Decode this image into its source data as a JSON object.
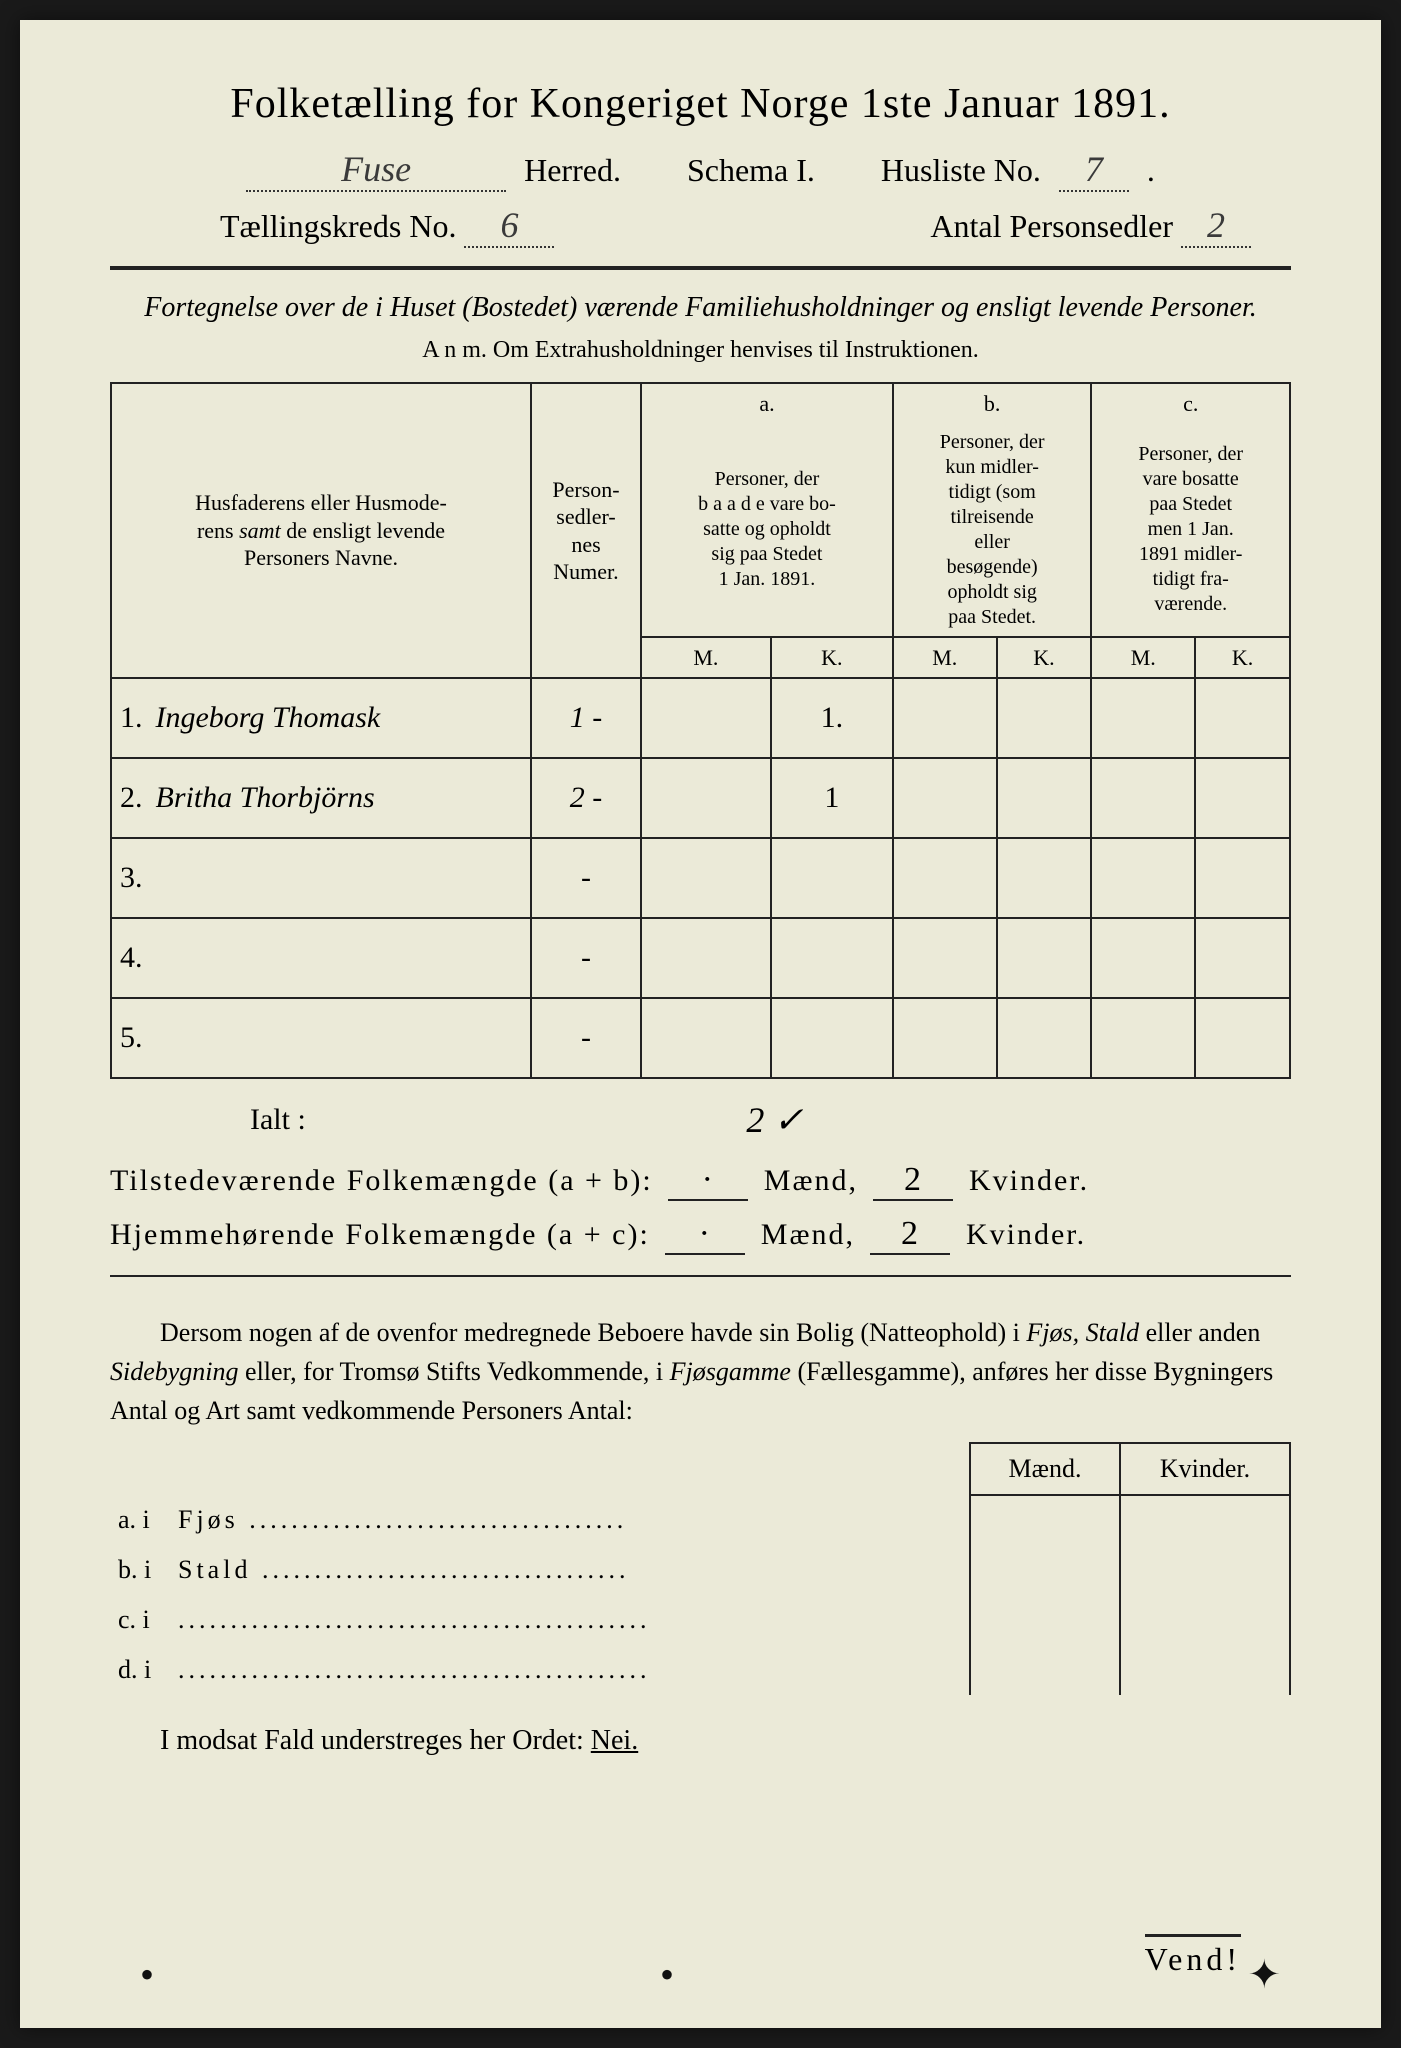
{
  "title": "Folketælling for Kongeriget Norge 1ste Januar 1891.",
  "header": {
    "herred_value": "Fuse",
    "herred_label": "Herred.",
    "schema_label": "Schema I.",
    "husliste_label": "Husliste No.",
    "husliste_value": "7",
    "kreds_label": "Tællingskreds No.",
    "kreds_value": "6",
    "antal_label": "Antal Personsedler",
    "antal_value": "2"
  },
  "subdesc": "Fortegnelse over de i Huset (Bostedet) værende Familiehusholdninger og ensligt levende Personer.",
  "anm": "A n m.  Om Extrahusholdninger henvises til Instruktionen.",
  "table_headers": {
    "name": "Husfaderens eller Husmoderens samt de ensligt levende Personers Navne.",
    "ps": "Person-sedler-nes Numer.",
    "a_top": "a.",
    "a": "Personer, der baade vare bosatte og opholdt sig paa Stedet 1 Jan. 1891.",
    "b_top": "b.",
    "b": "Personer, der kun midlertidigt (som tilreisende eller besøgende) opholdt sig paa Stedet.",
    "c_top": "c.",
    "c": "Personer, der vare bosatte paa Stedet men 1 Jan. 1891 midlertidigt fraværende.",
    "M": "M.",
    "K": "K."
  },
  "rows": [
    {
      "n": "1.",
      "name": "Ingeborg Thomask",
      "ps": "1 -",
      "aM": "",
      "aK": "1.",
      "bM": "",
      "bK": "",
      "cM": "",
      "cK": ""
    },
    {
      "n": "2.",
      "name": "Britha Thorbjörns",
      "ps": "2 -",
      "aM": "",
      "aK": "1",
      "bM": "",
      "bK": "",
      "cM": "",
      "cK": ""
    },
    {
      "n": "3.",
      "name": "",
      "ps": "-",
      "aM": "",
      "aK": "",
      "bM": "",
      "bK": "",
      "cM": "",
      "cK": ""
    },
    {
      "n": "4.",
      "name": "",
      "ps": "-",
      "aM": "",
      "aK": "",
      "bM": "",
      "bK": "",
      "cM": "",
      "cK": ""
    },
    {
      "n": "5.",
      "name": "",
      "ps": "-",
      "aM": "",
      "aK": "",
      "bM": "",
      "bK": "",
      "cM": "",
      "cK": ""
    }
  ],
  "ialt": {
    "label": "Ialt :",
    "aK": "2 ✓"
  },
  "totals": {
    "line1_label": "Tilstedeværende Folkemængde (a + b):",
    "line1_m_label": "Mænd,",
    "line1_k_label": "Kvinder.",
    "line1_m": "·",
    "line1_k": "2",
    "line2_label": "Hjemmehørende Folkemængde (a + c):",
    "line2_m": "·",
    "line2_k": "2"
  },
  "paragraph": "Dersom nogen af de ovenfor medregnede Beboere havde sin Bolig (Natteophold) i Fjøs, Stald eller anden Sidebygning eller, for Tromsø Stifts Vedkommende, i Fjøsgamme (Fællesgamme), anføres her disse Bygningers Antal og Art samt vedkommende Personers Antal:",
  "subtable": {
    "h_m": "Mænd.",
    "h_k": "Kvinder.",
    "rows": [
      {
        "lbl": "a.  i",
        "txt": "Fjøs",
        "dots": "...................................."
      },
      {
        "lbl": "b.  i",
        "txt": "Stald",
        "dots": "..................................."
      },
      {
        "lbl": "c.  i",
        "txt": "",
        "dots": "............................................."
      },
      {
        "lbl": "d.  i",
        "txt": "",
        "dots": "............................................."
      }
    ]
  },
  "nei_line": "I modsat Fald understreges her Ordet: ",
  "nei": "Nei.",
  "vend": "Vend!",
  "colors": {
    "paper": "#ebead8",
    "ink": "#222222",
    "cursive": "#3a3a3a"
  }
}
